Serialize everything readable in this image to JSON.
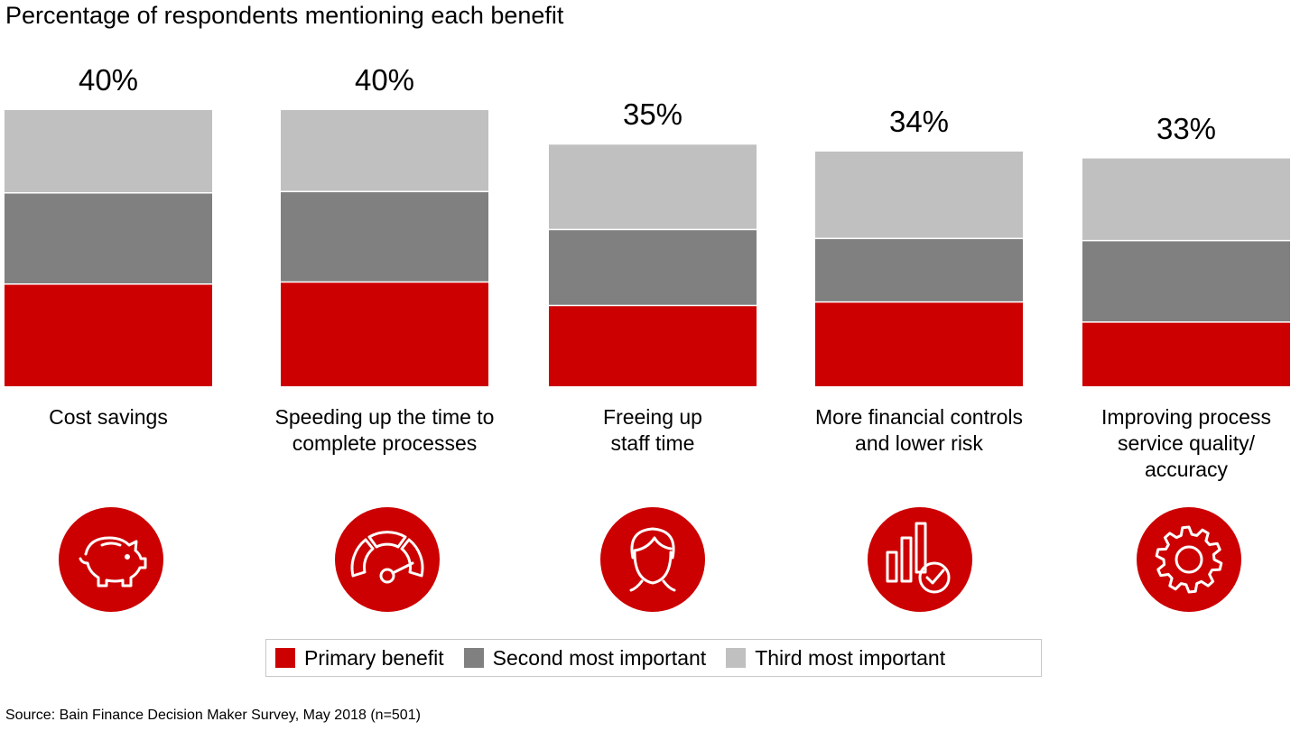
{
  "title": "Percentage of respondents mentioning each benefit",
  "colors": {
    "primary": "#cc0000",
    "second": "#808080",
    "third": "#c0c0c0",
    "icon_bg": "#cc0000"
  },
  "chart_data": {
    "type": "bar",
    "stacked": true,
    "title": "Percentage of respondents mentioning each benefit",
    "categories": [
      [
        "Cost savings"
      ],
      [
        "Speeding up the time to",
        "complete processes"
      ],
      [
        "Freeing up",
        "staff time"
      ],
      [
        "More financial controls",
        "and lower risk"
      ],
      [
        "Improving process",
        "service quality/",
        "accuracy"
      ]
    ],
    "series": [
      {
        "name": "Primary benefit",
        "values": [
          14.8,
          15.1,
          11.7,
          12.2,
          9.3
        ]
      },
      {
        "name": "Second most important",
        "values": [
          13.2,
          13.1,
          11.0,
          9.2,
          11.8
        ]
      },
      {
        "name": "Third most important",
        "values": [
          12.0,
          11.8,
          12.3,
          12.6,
          11.9
        ]
      }
    ],
    "totals": [
      "40%",
      "40%",
      "35%",
      "34%",
      "33%"
    ],
    "xlabel": "",
    "ylabel": "",
    "grid": false,
    "legend_position": "bottom"
  },
  "icons": [
    "piggy-bank-icon",
    "speedometer-icon",
    "person-icon",
    "bar-chart-check-icon",
    "gear-icon"
  ],
  "source": "Source: Bain Finance Decision Maker Survey, May 2018 (n=501)"
}
